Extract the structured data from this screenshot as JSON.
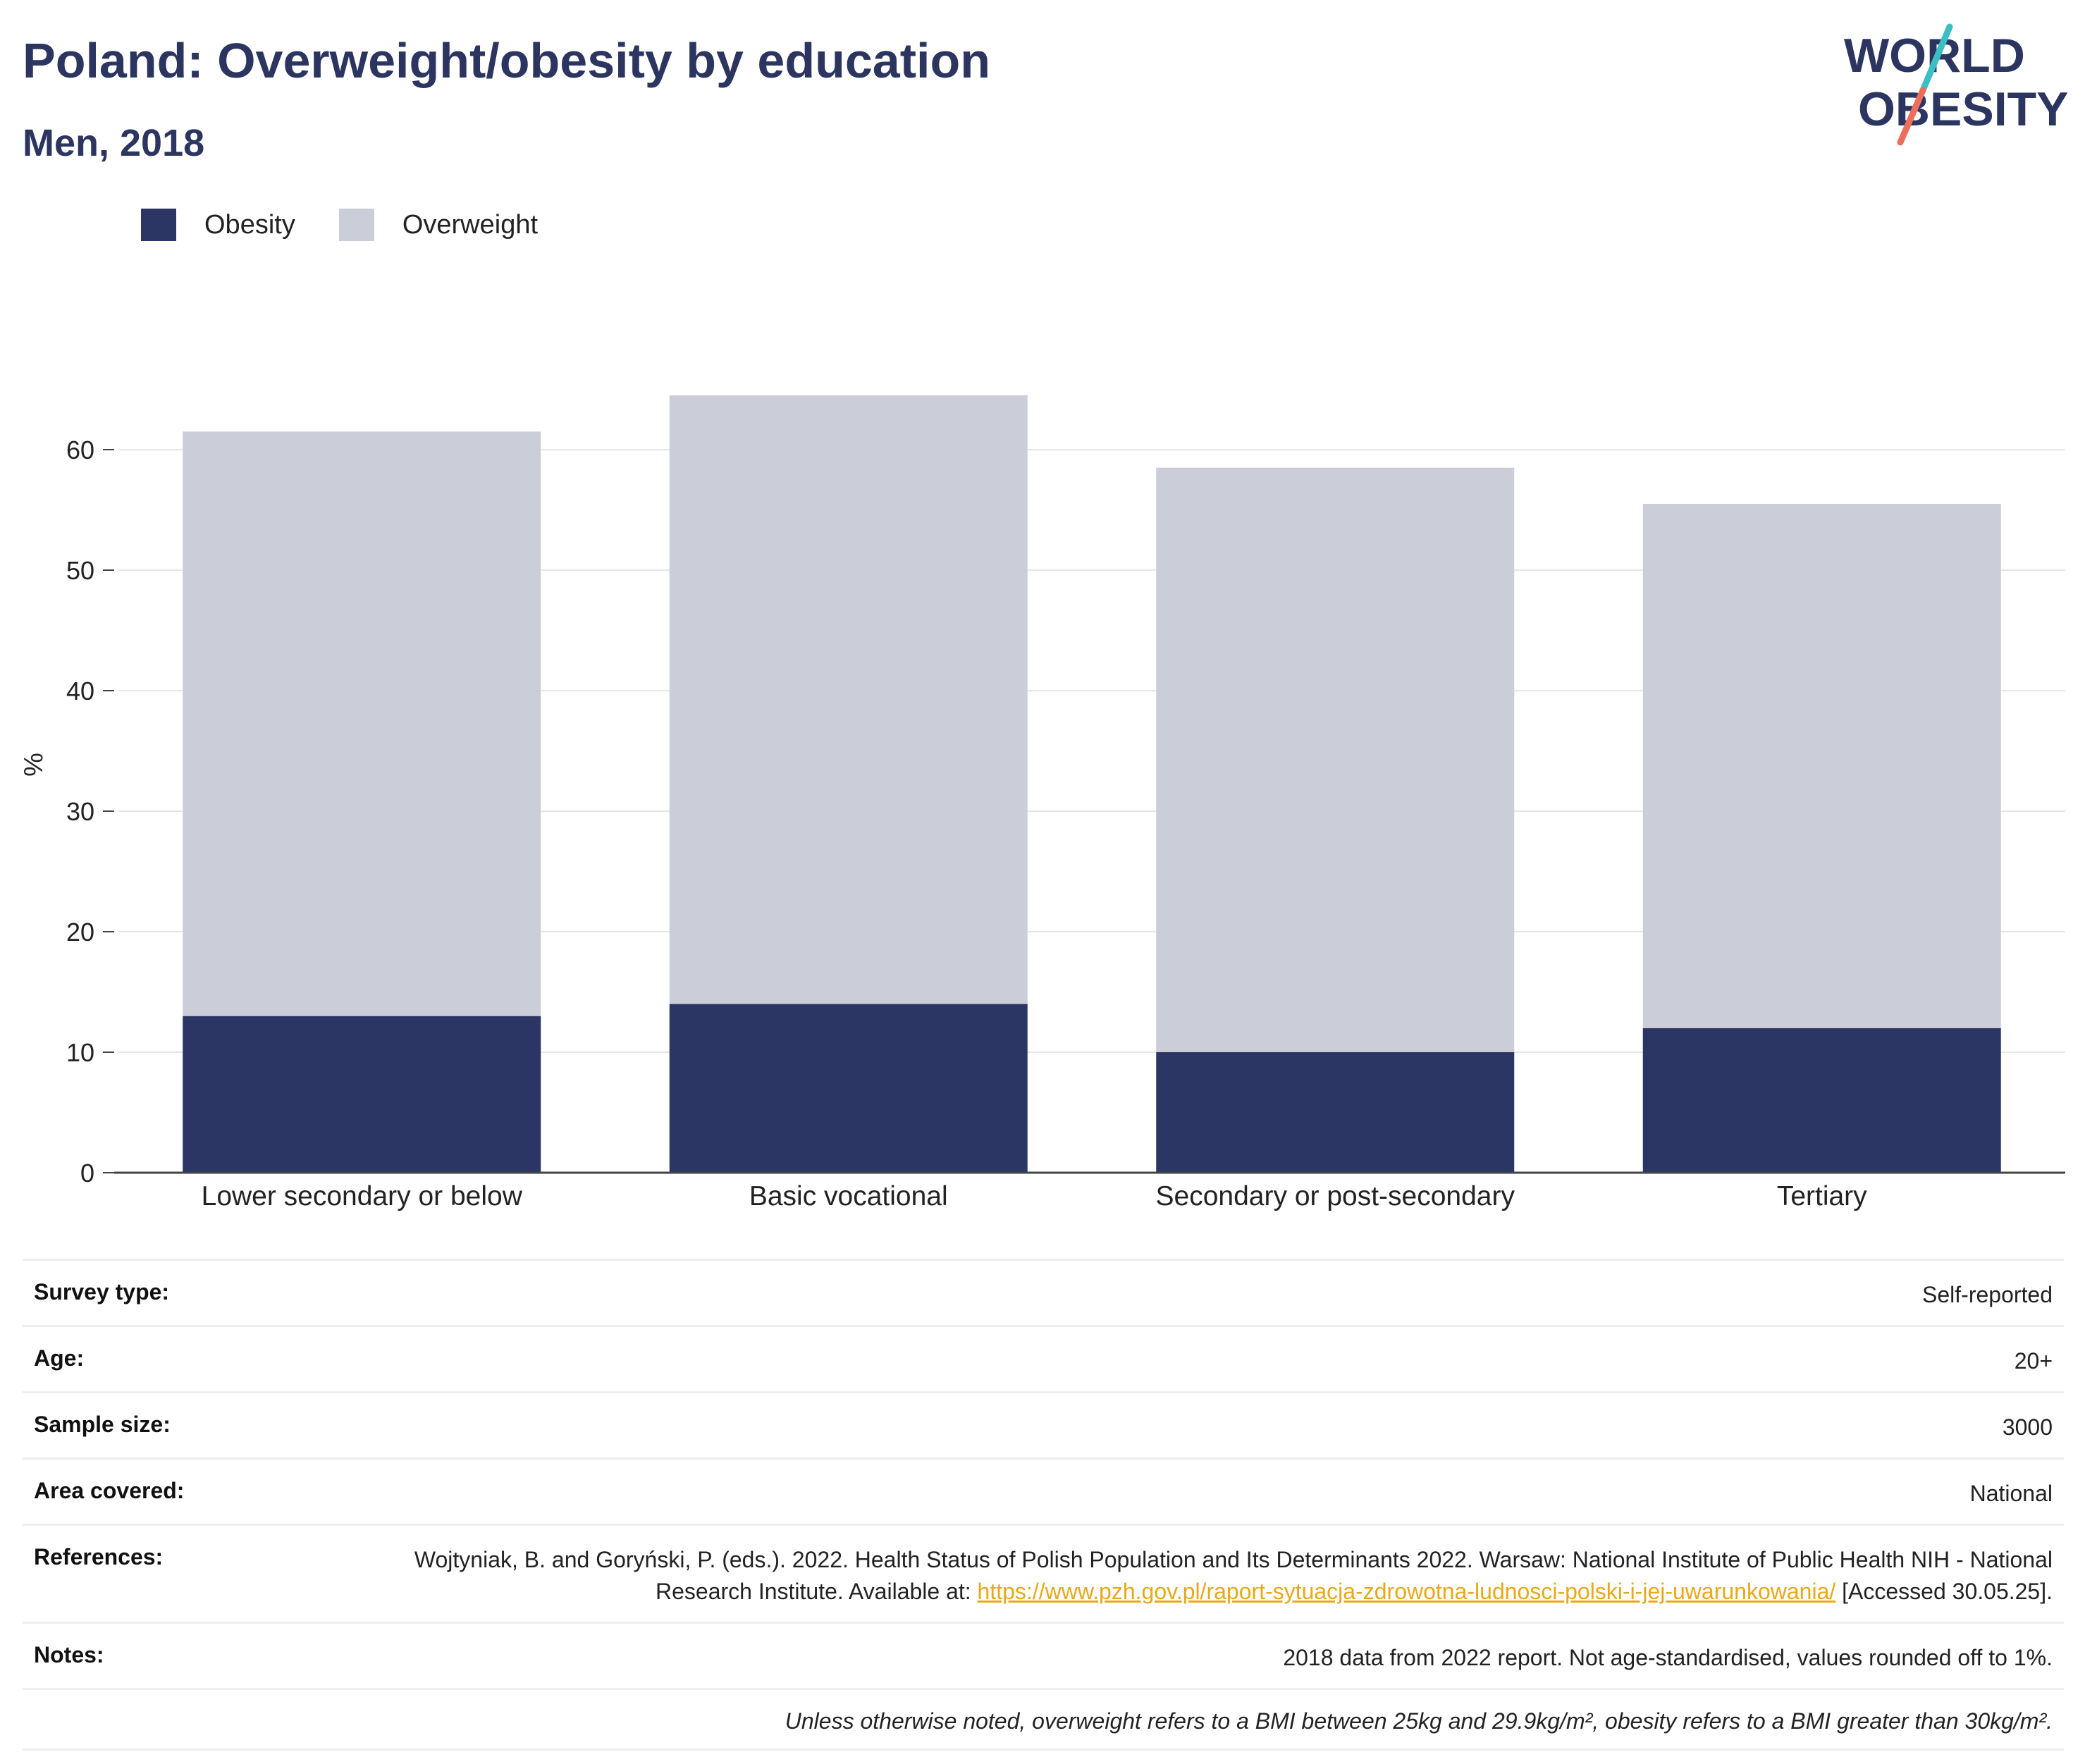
{
  "header": {
    "title": "Poland: Overweight/obesity by education",
    "subtitle": "Men, 2018"
  },
  "logo": {
    "line1": "WORLD",
    "line2": "OBESITY"
  },
  "colors": {
    "obesity": "#2b3664",
    "overweight": "#cbcdd8",
    "title": "#2b3560",
    "link": "#e8a817"
  },
  "chart_data": {
    "type": "bar",
    "stacked": true,
    "categories": [
      "Lower secondary or below",
      "Basic vocational",
      "Secondary or post-secondary",
      "Tertiary"
    ],
    "series": [
      {
        "name": "Obesity",
        "values": [
          13,
          14,
          10,
          12
        ]
      },
      {
        "name": "Overweight",
        "values": [
          48.5,
          50.5,
          48.5,
          43.5
        ]
      }
    ],
    "title": "Poland: Overweight/obesity by education",
    "subtitle": "Men, 2018",
    "xlabel": "",
    "ylabel": "%",
    "ylim": [
      0,
      66
    ],
    "yticks": [
      0,
      10,
      20,
      30,
      40,
      50,
      60
    ],
    "grid": true,
    "legend": "top-left"
  },
  "info": {
    "survey_type": {
      "label": "Survey type:",
      "value": "Self-reported"
    },
    "age": {
      "label": "Age:",
      "value": "20+"
    },
    "sample_size": {
      "label": "Sample size:",
      "value": "3000"
    },
    "area_covered": {
      "label": "Area covered:",
      "value": "National"
    },
    "references": {
      "label": "References:",
      "text_before": "Wojtyniak, B. and Goryński, P. (eds.). 2022. Health Status of Polish Population and Its Determinants 2022. Warsaw: National Institute of Public Health NIH - National Research Institute. Available at: ",
      "link": "https://www.pzh.gov.pl/raport-sytuacja-zdrowotna-ludnosci-polski-i-jej-uwarunkowania/",
      "text_after": " [Accessed 30.05.25]."
    },
    "notes": {
      "label": "Notes:",
      "value": "2018 data from 2022 report. Not age-standardised, values rounded off to 1%."
    },
    "footnote": "Unless otherwise noted, overweight refers to a BMI between 25kg and 29.9kg/m², obesity refers to a BMI greater than 30kg/m²."
  }
}
